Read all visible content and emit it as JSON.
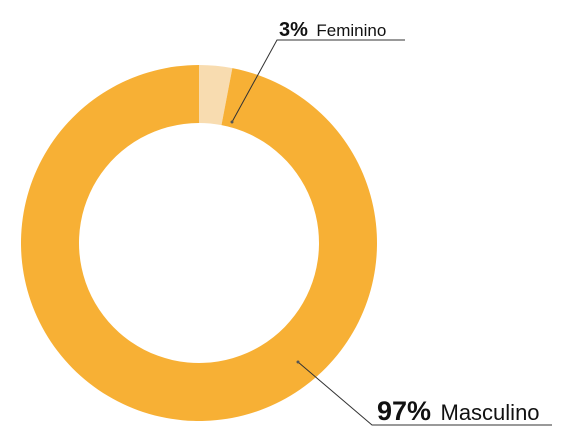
{
  "chart_data": {
    "type": "donut",
    "categories": [
      "Feminino",
      "Masculino"
    ],
    "values": [
      3,
      97
    ],
    "value_labels": [
      "3%",
      "97%"
    ],
    "colors": [
      "#f8dcb0",
      "#f7b035"
    ]
  }
}
